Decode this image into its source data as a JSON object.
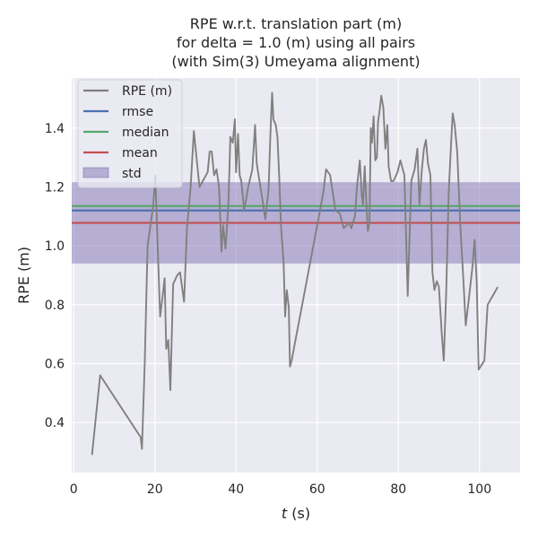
{
  "chart_data": {
    "type": "line",
    "title": [
      "RPE w.r.t. translation part (m)",
      "for delta = 1.0 (m) using all pairs",
      "(with Sim(3) Umeyama alignment)"
    ],
    "xlabel_var": "t",
    "xlabel_unit": " (s)",
    "ylabel": "RPE (m)",
    "xlim": [
      -0.5,
      110
    ],
    "ylim": [
      0.23,
      1.57
    ],
    "xticks": [
      0,
      20,
      40,
      60,
      80,
      100
    ],
    "yticks": [
      0.4,
      0.6,
      0.8,
      1.0,
      1.2,
      1.4
    ],
    "ytick_labels": [
      "0.4",
      "0.6",
      "0.8",
      "1.0",
      "1.2",
      "1.4"
    ],
    "legend": {
      "location": "upper left",
      "entries": [
        {
          "label": "RPE (m)",
          "kind": "line",
          "color": "#808080"
        },
        {
          "label": "rmse",
          "kind": "line",
          "color": "#4c72b0"
        },
        {
          "label": "median",
          "kind": "line",
          "color": "#55a868"
        },
        {
          "label": "mean",
          "kind": "line",
          "color": "#c44e52"
        },
        {
          "label": "std",
          "kind": "patch",
          "color": "#8172b3"
        }
      ]
    },
    "stats": {
      "rmse": 1.12,
      "median": 1.135,
      "mean": 1.078,
      "std_low": 0.94,
      "std_high": 1.216
    },
    "series": [
      {
        "name": "RPE (m)",
        "color": "#808080",
        "points": [
          [
            4.5,
            0.29
          ],
          [
            6.5,
            0.56
          ],
          [
            16.5,
            0.35
          ],
          [
            16.8,
            0.31
          ],
          [
            17.5,
            0.6
          ],
          [
            18.2,
            1.0
          ],
          [
            19.0,
            1.08
          ],
          [
            19.6,
            1.14
          ],
          [
            20.1,
            1.24
          ],
          [
            20.6,
            1.03
          ],
          [
            21.3,
            0.76
          ],
          [
            21.9,
            0.83
          ],
          [
            22.4,
            0.89
          ],
          [
            22.8,
            0.65
          ],
          [
            23.3,
            0.68
          ],
          [
            23.8,
            0.51
          ],
          [
            24.5,
            0.87
          ],
          [
            25.5,
            0.9
          ],
          [
            26.2,
            0.91
          ],
          [
            27.2,
            0.81
          ],
          [
            27.9,
            1.06
          ],
          [
            28.8,
            1.2
          ],
          [
            29.6,
            1.39
          ],
          [
            30.4,
            1.28
          ],
          [
            31.0,
            1.2
          ],
          [
            33.0,
            1.25
          ],
          [
            33.5,
            1.32
          ],
          [
            34.0,
            1.32
          ],
          [
            34.6,
            1.24
          ],
          [
            35.2,
            1.26
          ],
          [
            35.8,
            1.2
          ],
          [
            36.4,
            0.98
          ],
          [
            36.8,
            1.07
          ],
          [
            37.4,
            0.99
          ],
          [
            38.1,
            1.14
          ],
          [
            38.6,
            1.37
          ],
          [
            39.2,
            1.35
          ],
          [
            39.7,
            1.43
          ],
          [
            40.0,
            1.25
          ],
          [
            40.5,
            1.38
          ],
          [
            40.9,
            1.24
          ],
          [
            41.3,
            1.22
          ],
          [
            42.0,
            1.12
          ],
          [
            43.0,
            1.2
          ],
          [
            44.0,
            1.26
          ],
          [
            44.7,
            1.41
          ],
          [
            45.1,
            1.28
          ],
          [
            46.0,
            1.2
          ],
          [
            46.8,
            1.13
          ],
          [
            47.2,
            1.09
          ],
          [
            48.0,
            1.19
          ],
          [
            48.5,
            1.39
          ],
          [
            48.9,
            1.52
          ],
          [
            49.2,
            1.43
          ],
          [
            49.8,
            1.41
          ],
          [
            50.2,
            1.37
          ],
          [
            50.6,
            1.25
          ],
          [
            51.1,
            1.06
          ],
          [
            51.7,
            0.95
          ],
          [
            52.1,
            0.76
          ],
          [
            52.5,
            0.85
          ],
          [
            53.0,
            0.79
          ],
          [
            53.3,
            0.59
          ],
          [
            53.7,
            0.61
          ],
          [
            60.0,
            1.07
          ],
          [
            61.5,
            1.18
          ],
          [
            62.2,
            1.26
          ],
          [
            63.2,
            1.24
          ],
          [
            64.5,
            1.12
          ],
          [
            65.6,
            1.11
          ],
          [
            66.5,
            1.06
          ],
          [
            67.3,
            1.07
          ],
          [
            67.8,
            1.08
          ],
          [
            68.4,
            1.06
          ],
          [
            69.3,
            1.1
          ],
          [
            69.8,
            1.2
          ],
          [
            70.5,
            1.29
          ],
          [
            71.0,
            1.17
          ],
          [
            71.3,
            1.14
          ],
          [
            71.7,
            1.27
          ],
          [
            72.1,
            1.15
          ],
          [
            72.5,
            1.05
          ],
          [
            72.9,
            1.08
          ],
          [
            73.2,
            1.4
          ],
          [
            73.5,
            1.35
          ],
          [
            73.9,
            1.44
          ],
          [
            74.3,
            1.29
          ],
          [
            74.7,
            1.3
          ],
          [
            75.0,
            1.42
          ],
          [
            75.4,
            1.46
          ],
          [
            75.8,
            1.51
          ],
          [
            76.3,
            1.47
          ],
          [
            76.8,
            1.33
          ],
          [
            77.3,
            1.41
          ],
          [
            77.6,
            1.27
          ],
          [
            78.2,
            1.22
          ],
          [
            78.8,
            1.22
          ],
          [
            79.8,
            1.25
          ],
          [
            80.5,
            1.29
          ],
          [
            81.5,
            1.24
          ],
          [
            82.3,
            0.83
          ],
          [
            83.2,
            1.22
          ],
          [
            84.0,
            1.26
          ],
          [
            84.7,
            1.33
          ],
          [
            85.2,
            1.14
          ],
          [
            85.8,
            1.26
          ],
          [
            86.3,
            1.33
          ],
          [
            86.8,
            1.36
          ],
          [
            87.3,
            1.28
          ],
          [
            87.9,
            1.24
          ],
          [
            88.4,
            0.91
          ],
          [
            88.9,
            0.85
          ],
          [
            89.5,
            0.88
          ],
          [
            90.0,
            0.86
          ],
          [
            90.7,
            0.7
          ],
          [
            91.2,
            0.61
          ],
          [
            91.8,
            0.84
          ],
          [
            92.4,
            1.18
          ],
          [
            93.0,
            1.35
          ],
          [
            93.4,
            1.45
          ],
          [
            93.9,
            1.41
          ],
          [
            94.5,
            1.32
          ],
          [
            95.3,
            1.06
          ],
          [
            96.0,
            0.89
          ],
          [
            96.6,
            0.73
          ],
          [
            97.3,
            0.81
          ],
          [
            98.2,
            0.92
          ],
          [
            98.8,
            1.02
          ],
          [
            99.3,
            0.88
          ],
          [
            99.8,
            0.58
          ],
          [
            101.2,
            0.61
          ],
          [
            102.0,
            0.8
          ],
          [
            104.5,
            0.86
          ]
        ]
      }
    ]
  }
}
